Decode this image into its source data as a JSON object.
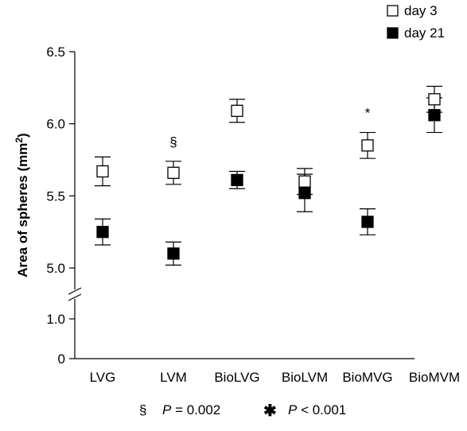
{
  "chart_data": {
    "type": "scatter",
    "categories": [
      "LVG",
      "LVM",
      "BioLVG",
      "BioLVM",
      "BioMVG",
      "BioMVM"
    ],
    "ylabel": "Area of spheres (mm²)",
    "ylabel_main": "Area of spheres (mm",
    "ylabel_sup": "2",
    "ylabel_close": ")",
    "xlabel": "",
    "axis_break": true,
    "y_ticks_upper": [
      "6.5",
      "6.0",
      "5.5",
      "5.0"
    ],
    "y_ticks_lower": [
      "1.0",
      "0"
    ],
    "ylim_upper": [
      5.0,
      6.5
    ],
    "ylim_lower": [
      0,
      1.0
    ],
    "legend_position": "top-right",
    "grid": false,
    "series": [
      {
        "name": "day 3",
        "marker": "open-square",
        "color": "#000000",
        "values": [
          5.67,
          5.66,
          6.09,
          5.6,
          5.85,
          6.17
        ],
        "errors": [
          0.1,
          0.08,
          0.08,
          0.09,
          0.09,
          0.09
        ]
      },
      {
        "name": "day 21",
        "marker": "filled-square",
        "color": "#000000",
        "values": [
          5.25,
          5.1,
          5.61,
          5.52,
          5.32,
          6.06
        ],
        "errors": [
          0.09,
          0.08,
          0.06,
          0.13,
          0.09,
          0.12
        ]
      }
    ],
    "annotations": [
      {
        "category": "LVM",
        "symbol": "§"
      },
      {
        "category": "BioMVG",
        "symbol": "*"
      }
    ],
    "footnotes": [
      {
        "symbol": "§",
        "p_label": "P",
        "relation": " = 0.002"
      },
      {
        "symbol": "✱",
        "p_label": "P",
        "relation": " < 0.001"
      }
    ]
  }
}
